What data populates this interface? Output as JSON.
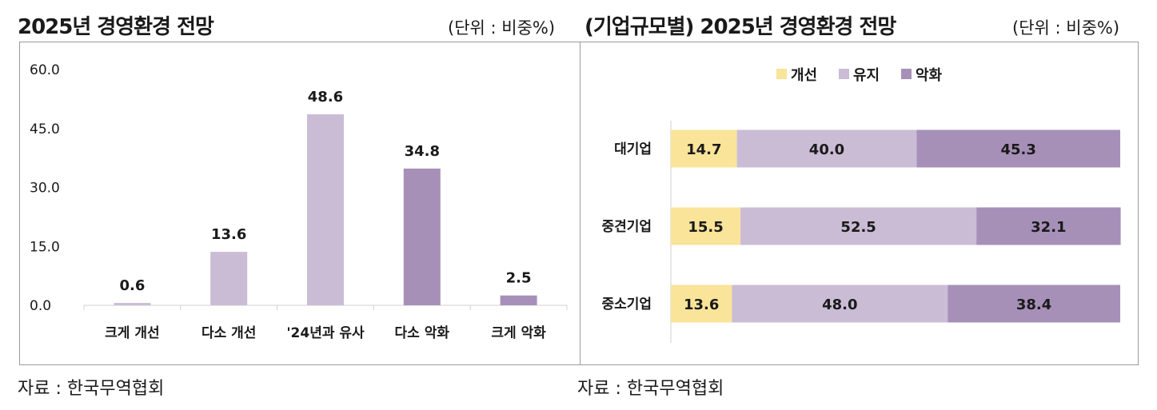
{
  "header": {
    "left_title": "2025년 경영환경 전망",
    "left_unit": "(단위 : 비중%)",
    "right_title": "(기업규모별) 2025년 경영환경 전망",
    "right_unit": "(단위 : 비중%)"
  },
  "footer": {
    "left_source": "자료 : 한국무역협회",
    "right_source": "자료 : 한국무역협회"
  },
  "colors": {
    "light": "#f9e49a",
    "mid": "#cbbcd6",
    "dark": "#a690b8",
    "axis": "#d0d0d0"
  },
  "chart_data": [
    {
      "type": "bar",
      "title": "2025년 경영환경 전망",
      "unit": "(단위 : 비중%)",
      "categories": [
        "크게 개선",
        "다소 개선",
        "'24년과 유사",
        "다소 악화",
        "크게 악화"
      ],
      "values": [
        0.6,
        13.6,
        48.6,
        34.8,
        2.5
      ],
      "value_labels": [
        "0.6",
        "13.6",
        "48.6",
        "34.8",
        "2.5"
      ],
      "bar_colors": [
        "#cbbcd6",
        "#cbbcd6",
        "#cbbcd6",
        "#a690b8",
        "#a690b8"
      ],
      "ylim": [
        0,
        60
      ],
      "yticks": [
        0,
        15,
        30,
        45,
        60
      ],
      "ytick_labels": [
        "0.0",
        "15.0",
        "30.0",
        "45.0",
        "60.0"
      ],
      "xlabel": "",
      "ylabel": "",
      "grid": false
    },
    {
      "type": "bar",
      "orientation": "horizontal-stacked",
      "title": "(기업규모별) 2025년 경영환경 전망",
      "unit": "(단위 : 비중%)",
      "categories": [
        "대기업",
        "중견기업",
        "중소기업"
      ],
      "series": [
        {
          "name": "개선",
          "color": "#f9e49a",
          "values": [
            14.7,
            15.5,
            13.6
          ],
          "labels": [
            "14.7",
            "15.5",
            "13.6"
          ]
        },
        {
          "name": "유지",
          "color": "#cbbcd6",
          "values": [
            40.0,
            52.5,
            48.0
          ],
          "labels": [
            "40.0",
            "52.5",
            "48.0"
          ]
        },
        {
          "name": "악화",
          "color": "#a690b8",
          "values": [
            45.3,
            32.1,
            38.4
          ],
          "labels": [
            "45.3",
            "32.1",
            "38.4"
          ]
        }
      ],
      "legend": "top-center",
      "grid": false
    }
  ]
}
